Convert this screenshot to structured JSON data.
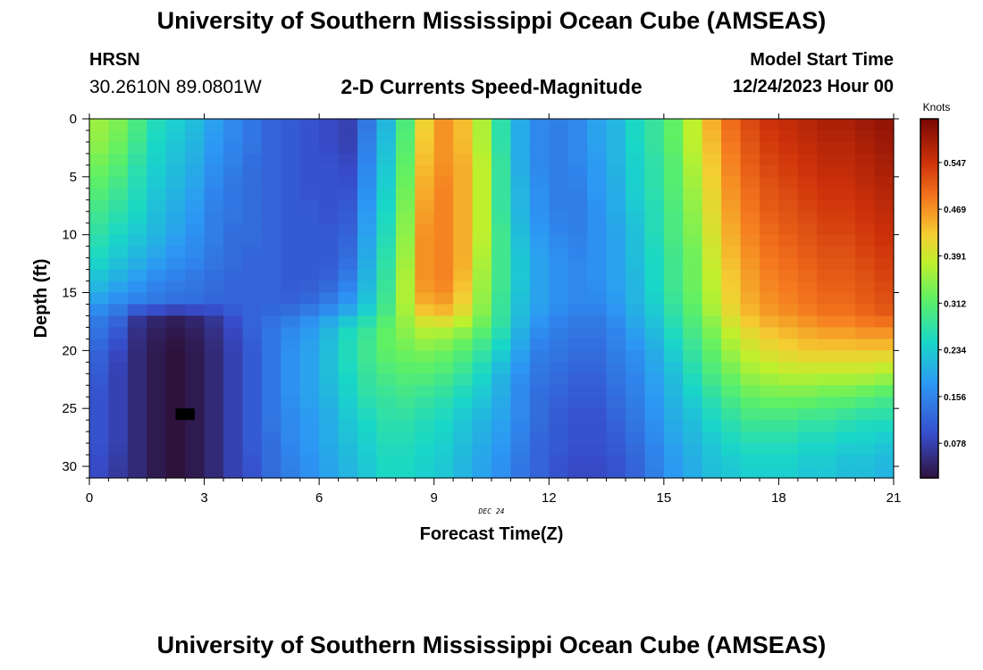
{
  "title": "University of Southern Mississippi Ocean Cube (AMSEAS)",
  "footer_title": "University of Southern Mississippi Ocean Cube (AMSEAS)",
  "station": "HRSN",
  "coordinates": "30.2610N  89.0801W",
  "subtitle": "2-D Currents Speed-Magnitude",
  "model_start_label": "Model Start Time",
  "model_start_value": "12/24/2023 Hour 00",
  "chart_data": {
    "type": "heatmap",
    "title": "2-D Currents Speed-Magnitude",
    "xlabel": "Forecast Time(Z)",
    "ylabel": "Depth (ft)",
    "date_label": "DEC 24",
    "xlim": [
      0,
      21
    ],
    "ylim": [
      31,
      0
    ],
    "xticks": [
      0,
      3,
      6,
      9,
      12,
      15,
      18,
      21
    ],
    "yticks": [
      0,
      5,
      10,
      15,
      20,
      25,
      30
    ],
    "colorbar_label": "Knots",
    "colorbar_ticks": [
      0.078,
      0.156,
      0.234,
      0.312,
      0.391,
      0.469,
      0.547
    ],
    "colorbar_range": [
      0.02,
      0.62
    ],
    "masked_cell": {
      "time": 2.5,
      "depth": 25.5
    },
    "times": [
      0.25,
      0.75,
      1.25,
      1.75,
      2.25,
      2.75,
      3.25,
      3.75,
      4.25,
      4.75,
      5.25,
      5.75,
      6.25,
      6.75,
      7.25,
      7.75,
      8.25,
      8.75,
      9.25,
      9.75,
      10.25,
      10.75,
      11.25,
      11.75,
      12.25,
      12.75,
      13.25,
      13.75,
      14.25,
      14.75,
      15.25,
      15.75,
      16.25,
      16.75,
      17.25,
      17.75,
      18.25,
      18.75,
      19.25,
      19.75,
      20.25,
      20.75
    ],
    "depths": [
      0,
      2,
      4,
      6,
      8,
      10,
      12,
      14,
      16,
      17,
      18,
      20,
      22,
      24,
      26,
      28,
      30
    ],
    "speeds": [
      [
        0.36,
        0.34,
        0.3,
        0.26,
        0.24,
        0.22,
        0.19,
        0.16,
        0.14,
        0.12,
        0.11,
        0.1,
        0.09,
        0.08,
        0.14,
        0.21,
        0.3,
        0.42,
        0.47,
        0.44,
        0.37,
        0.27,
        0.2,
        0.16,
        0.15,
        0.16,
        0.19,
        0.21,
        0.25,
        0.28,
        0.32,
        0.38,
        0.45,
        0.5,
        0.53,
        0.55,
        0.56,
        0.57,
        0.58,
        0.58,
        0.59,
        0.6
      ],
      [
        0.35,
        0.33,
        0.29,
        0.25,
        0.23,
        0.21,
        0.18,
        0.16,
        0.14,
        0.12,
        0.11,
        0.1,
        0.09,
        0.08,
        0.15,
        0.22,
        0.31,
        0.43,
        0.47,
        0.44,
        0.37,
        0.27,
        0.2,
        0.16,
        0.15,
        0.16,
        0.19,
        0.21,
        0.25,
        0.28,
        0.32,
        0.38,
        0.44,
        0.49,
        0.52,
        0.54,
        0.55,
        0.56,
        0.57,
        0.57,
        0.58,
        0.59
      ],
      [
        0.33,
        0.31,
        0.27,
        0.24,
        0.22,
        0.2,
        0.17,
        0.15,
        0.13,
        0.12,
        0.11,
        0.1,
        0.1,
        0.09,
        0.16,
        0.23,
        0.32,
        0.44,
        0.47,
        0.45,
        0.38,
        0.28,
        0.2,
        0.16,
        0.15,
        0.16,
        0.18,
        0.21,
        0.24,
        0.27,
        0.31,
        0.37,
        0.43,
        0.48,
        0.51,
        0.53,
        0.54,
        0.55,
        0.56,
        0.56,
        0.57,
        0.58
      ],
      [
        0.31,
        0.29,
        0.26,
        0.23,
        0.21,
        0.19,
        0.16,
        0.14,
        0.13,
        0.12,
        0.11,
        0.1,
        0.1,
        0.1,
        0.17,
        0.24,
        0.33,
        0.45,
        0.48,
        0.45,
        0.38,
        0.28,
        0.21,
        0.17,
        0.15,
        0.15,
        0.18,
        0.2,
        0.24,
        0.27,
        0.31,
        0.36,
        0.42,
        0.47,
        0.5,
        0.52,
        0.53,
        0.54,
        0.55,
        0.55,
        0.56,
        0.57
      ],
      [
        0.29,
        0.27,
        0.25,
        0.22,
        0.2,
        0.18,
        0.15,
        0.14,
        0.13,
        0.12,
        0.11,
        0.11,
        0.1,
        0.11,
        0.18,
        0.25,
        0.34,
        0.46,
        0.48,
        0.45,
        0.38,
        0.28,
        0.21,
        0.17,
        0.15,
        0.15,
        0.17,
        0.2,
        0.23,
        0.26,
        0.3,
        0.35,
        0.41,
        0.46,
        0.49,
        0.51,
        0.52,
        0.53,
        0.54,
        0.54,
        0.55,
        0.56
      ],
      [
        0.27,
        0.25,
        0.23,
        0.21,
        0.19,
        0.17,
        0.15,
        0.13,
        0.13,
        0.12,
        0.11,
        0.11,
        0.11,
        0.12,
        0.19,
        0.26,
        0.35,
        0.47,
        0.48,
        0.45,
        0.38,
        0.29,
        0.22,
        0.18,
        0.16,
        0.15,
        0.17,
        0.19,
        0.22,
        0.26,
        0.3,
        0.34,
        0.4,
        0.45,
        0.48,
        0.5,
        0.51,
        0.52,
        0.53,
        0.53,
        0.54,
        0.55
      ],
      [
        0.25,
        0.23,
        0.21,
        0.19,
        0.17,
        0.16,
        0.14,
        0.13,
        0.12,
        0.12,
        0.11,
        0.11,
        0.11,
        0.13,
        0.2,
        0.27,
        0.36,
        0.47,
        0.48,
        0.45,
        0.37,
        0.29,
        0.23,
        0.19,
        0.17,
        0.16,
        0.17,
        0.19,
        0.22,
        0.25,
        0.29,
        0.33,
        0.39,
        0.44,
        0.47,
        0.49,
        0.5,
        0.51,
        0.52,
        0.52,
        0.53,
        0.54
      ],
      [
        0.22,
        0.2,
        0.18,
        0.16,
        0.15,
        0.14,
        0.13,
        0.12,
        0.12,
        0.12,
        0.11,
        0.11,
        0.12,
        0.15,
        0.21,
        0.28,
        0.37,
        0.47,
        0.48,
        0.44,
        0.36,
        0.29,
        0.23,
        0.19,
        0.17,
        0.16,
        0.17,
        0.19,
        0.21,
        0.25,
        0.29,
        0.33,
        0.38,
        0.43,
        0.46,
        0.48,
        0.49,
        0.5,
        0.51,
        0.51,
        0.52,
        0.53
      ],
      [
        0.18,
        0.16,
        0.15,
        0.14,
        0.13,
        0.13,
        0.12,
        0.12,
        0.12,
        0.12,
        0.12,
        0.13,
        0.15,
        0.18,
        0.23,
        0.29,
        0.37,
        0.45,
        0.46,
        0.42,
        0.35,
        0.28,
        0.22,
        0.19,
        0.17,
        0.16,
        0.16,
        0.18,
        0.21,
        0.24,
        0.28,
        0.32,
        0.37,
        0.42,
        0.45,
        0.47,
        0.48,
        0.49,
        0.5,
        0.5,
        0.51,
        0.52
      ],
      [
        0.15,
        0.13,
        0.07,
        0.05,
        0.04,
        0.05,
        0.07,
        0.1,
        0.12,
        0.13,
        0.14,
        0.16,
        0.18,
        0.21,
        0.25,
        0.3,
        0.36,
        0.42,
        0.43,
        0.4,
        0.34,
        0.28,
        0.22,
        0.18,
        0.16,
        0.15,
        0.15,
        0.17,
        0.2,
        0.23,
        0.27,
        0.31,
        0.36,
        0.41,
        0.44,
        0.46,
        0.47,
        0.48,
        0.49,
        0.49,
        0.5,
        0.51
      ],
      [
        0.14,
        0.11,
        0.06,
        0.04,
        0.03,
        0.04,
        0.06,
        0.09,
        0.12,
        0.14,
        0.16,
        0.18,
        0.21,
        0.25,
        0.28,
        0.32,
        0.35,
        0.38,
        0.38,
        0.36,
        0.32,
        0.27,
        0.21,
        0.17,
        0.15,
        0.14,
        0.14,
        0.16,
        0.19,
        0.22,
        0.26,
        0.3,
        0.34,
        0.39,
        0.42,
        0.44,
        0.45,
        0.46,
        0.47,
        0.47,
        0.48,
        0.48
      ],
      [
        0.12,
        0.09,
        0.05,
        0.03,
        0.02,
        0.03,
        0.05,
        0.08,
        0.11,
        0.14,
        0.17,
        0.19,
        0.22,
        0.26,
        0.29,
        0.32,
        0.33,
        0.34,
        0.33,
        0.31,
        0.28,
        0.24,
        0.19,
        0.15,
        0.14,
        0.13,
        0.13,
        0.15,
        0.17,
        0.2,
        0.24,
        0.28,
        0.32,
        0.36,
        0.39,
        0.41,
        0.42,
        0.43,
        0.43,
        0.43,
        0.43,
        0.43
      ],
      [
        0.11,
        0.08,
        0.05,
        0.03,
        0.02,
        0.03,
        0.05,
        0.08,
        0.11,
        0.14,
        0.17,
        0.19,
        0.22,
        0.25,
        0.28,
        0.3,
        0.31,
        0.31,
        0.3,
        0.28,
        0.25,
        0.21,
        0.17,
        0.14,
        0.13,
        0.12,
        0.12,
        0.14,
        0.16,
        0.19,
        0.22,
        0.26,
        0.3,
        0.33,
        0.36,
        0.37,
        0.38,
        0.38,
        0.38,
        0.38,
        0.38,
        0.37
      ],
      [
        0.1,
        0.08,
        0.05,
        0.03,
        0.02,
        0.03,
        0.05,
        0.08,
        0.11,
        0.14,
        0.17,
        0.19,
        0.21,
        0.24,
        0.27,
        0.28,
        0.29,
        0.28,
        0.27,
        0.25,
        0.23,
        0.2,
        0.16,
        0.13,
        0.12,
        0.11,
        0.11,
        0.13,
        0.15,
        0.18,
        0.21,
        0.24,
        0.27,
        0.3,
        0.32,
        0.33,
        0.33,
        0.33,
        0.32,
        0.32,
        0.31,
        0.3
      ],
      [
        0.1,
        0.08,
        0.05,
        0.03,
        0.02,
        0.03,
        0.05,
        0.08,
        0.11,
        0.14,
        0.16,
        0.18,
        0.2,
        0.23,
        0.25,
        0.27,
        0.27,
        0.26,
        0.25,
        0.23,
        0.21,
        0.19,
        0.16,
        0.13,
        0.11,
        0.1,
        0.1,
        0.12,
        0.14,
        0.17,
        0.2,
        0.22,
        0.25,
        0.27,
        0.29,
        0.29,
        0.29,
        0.28,
        0.28,
        0.27,
        0.26,
        0.26
      ],
      [
        0.1,
        0.08,
        0.05,
        0.03,
        0.02,
        0.03,
        0.05,
        0.08,
        0.11,
        0.13,
        0.16,
        0.18,
        0.2,
        0.22,
        0.24,
        0.26,
        0.26,
        0.25,
        0.24,
        0.22,
        0.2,
        0.18,
        0.15,
        0.12,
        0.11,
        0.1,
        0.1,
        0.11,
        0.13,
        0.16,
        0.19,
        0.21,
        0.23,
        0.25,
        0.26,
        0.26,
        0.26,
        0.25,
        0.25,
        0.24,
        0.24,
        0.23
      ],
      [
        0.09,
        0.07,
        0.05,
        0.03,
        0.02,
        0.03,
        0.05,
        0.08,
        0.1,
        0.13,
        0.15,
        0.17,
        0.19,
        0.21,
        0.23,
        0.25,
        0.25,
        0.24,
        0.23,
        0.21,
        0.19,
        0.17,
        0.14,
        0.12,
        0.1,
        0.09,
        0.09,
        0.1,
        0.12,
        0.15,
        0.18,
        0.2,
        0.22,
        0.23,
        0.24,
        0.24,
        0.24,
        0.23,
        0.23,
        0.22,
        0.22,
        0.21
      ]
    ]
  }
}
